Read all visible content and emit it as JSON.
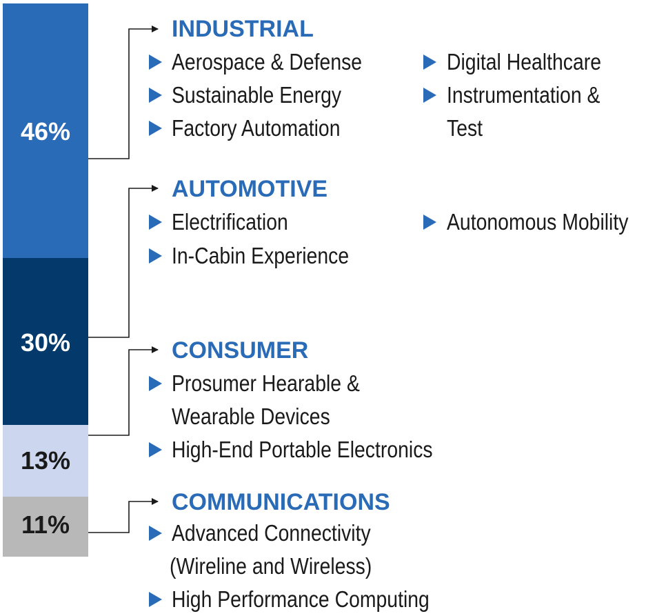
{
  "segments": [
    {
      "label": "46%",
      "value": 46,
      "color": "#2a6bb7",
      "text_color": "#ffffff"
    },
    {
      "label": "30%",
      "value": 30,
      "color": "#033a6b",
      "text_color": "#ffffff"
    },
    {
      "label": "13%",
      "value": 13,
      "color": "#ccd6ee",
      "text_color": "#1a1a1a"
    },
    {
      "label": "11%",
      "value": 11,
      "color": "#b8b8b8",
      "text_color": "#1a1a1a"
    }
  ],
  "categories": [
    {
      "title": "INDUSTRIAL",
      "items": [
        "Aerospace & Defense",
        "Sustainable Energy",
        "Factory Automation",
        "Digital Healthcare",
        "Instrumentation &",
        "Test"
      ]
    },
    {
      "title": "AUTOMOTIVE",
      "items": [
        "Electrification",
        "In-Cabin Experience",
        "Autonomous Mobility"
      ]
    },
    {
      "title": "CONSUMER",
      "items": [
        "Prosumer Hearable &",
        "Wearable Devices",
        "High-End Portable Electronics"
      ]
    },
    {
      "title": "COMMUNICATIONS",
      "items": [
        "Advanced Connectivity",
        "(Wireline and Wireless)",
        "High Performance Computing"
      ]
    }
  ],
  "colors": {
    "accent": "#2a6bb7",
    "text": "#1a1a1a",
    "line": "#1a1a1a"
  }
}
